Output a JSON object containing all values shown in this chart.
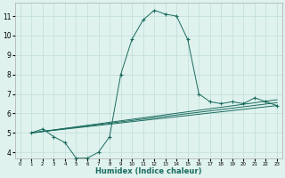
{
  "xlabel": "Humidex (Indice chaleur)",
  "background_color": "#dff2ee",
  "grid_color": "#c0ddd8",
  "line_color": "#1a6b5e",
  "xlim": [
    -0.5,
    23.5
  ],
  "ylim": [
    3.7,
    11.7
  ],
  "yticks": [
    4,
    5,
    6,
    7,
    8,
    9,
    10,
    11
  ],
  "xticks": [
    0,
    1,
    2,
    3,
    4,
    5,
    6,
    7,
    8,
    9,
    10,
    11,
    12,
    13,
    14,
    15,
    16,
    17,
    18,
    19,
    20,
    21,
    22,
    23
  ],
  "series1_x": [
    1,
    2,
    3,
    4,
    5,
    6,
    7,
    8,
    9,
    10,
    11,
    12,
    13,
    14,
    15,
    16,
    17,
    18,
    19,
    20,
    21,
    22,
    23
  ],
  "series1_y": [
    5.0,
    5.2,
    4.8,
    4.5,
    3.7,
    3.7,
    4.0,
    4.8,
    8.0,
    9.8,
    10.8,
    11.3,
    11.1,
    11.0,
    9.8,
    7.0,
    6.6,
    6.5,
    6.6,
    6.5,
    6.8,
    6.6,
    6.4
  ],
  "series2_x": [
    1,
    23
  ],
  "series2_y": [
    5.0,
    6.4
  ],
  "series3_x": [
    1,
    23
  ],
  "series3_y": [
    5.0,
    6.55
  ],
  "series4_x": [
    1,
    23
  ],
  "series4_y": [
    5.0,
    6.7
  ]
}
